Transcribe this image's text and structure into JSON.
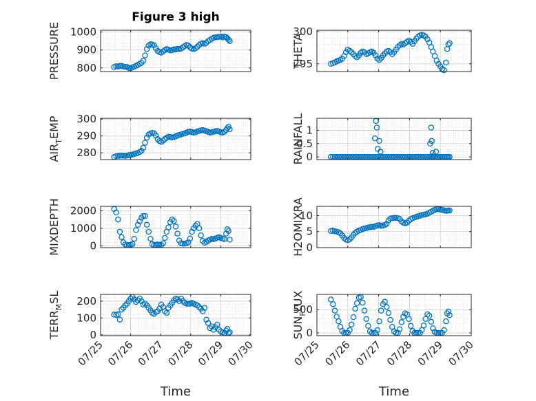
{
  "figure": {
    "title": "Figure 3 high",
    "marker_color": "#0072bd",
    "grid_color": "#d6d6d6",
    "axis_color": "#262626"
  },
  "chart_data": [
    {
      "type": "scatter",
      "ylabel": "PRESSURE",
      "title": "Figure 3 high",
      "xlim": [
        "07/25",
        "07/30"
      ],
      "xticks": [
        "07/25",
        "07/26",
        "07/27",
        "07/28",
        "07/29",
        "07/30"
      ],
      "ylim": [
        780,
        1010
      ],
      "yticks": [
        800,
        900,
        1000
      ],
      "xticklabels_shown": false,
      "grid": true,
      "x": [
        25.45,
        25.52,
        25.58,
        25.64,
        25.7,
        25.76,
        25.82,
        25.88,
        25.94,
        26.0,
        26.06,
        26.12,
        26.18,
        26.24,
        26.3,
        26.36,
        26.42,
        26.48,
        26.54,
        26.6,
        26.66,
        26.72,
        26.78,
        26.84,
        26.9,
        26.96,
        27.02,
        27.08,
        27.14,
        27.2,
        27.26,
        27.32,
        27.38,
        27.44,
        27.5,
        27.56,
        27.62,
        27.68,
        27.74,
        27.8,
        27.86,
        27.92,
        27.98,
        28.04,
        28.1,
        28.16,
        28.22,
        28.28,
        28.34,
        28.4,
        28.46,
        28.52,
        28.58,
        28.64,
        28.7,
        28.76,
        28.82,
        28.88,
        28.94,
        29.0,
        29.06,
        29.12,
        29.18,
        29.22,
        29.26,
        29.3
      ],
      "y": [
        805,
        810,
        808,
        812,
        811,
        808,
        806,
        805,
        800,
        798,
        803,
        807,
        812,
        818,
        823,
        828,
        840,
        870,
        905,
        925,
        932,
        930,
        926,
        910,
        895,
        888,
        885,
        892,
        900,
        905,
        902,
        898,
        900,
        903,
        904,
        906,
        905,
        908,
        915,
        922,
        928,
        925,
        915,
        908,
        905,
        910,
        918,
        928,
        935,
        938,
        935,
        940,
        950,
        955,
        962,
        968,
        970,
        972,
        973,
        975,
        970,
        975,
        972,
        965,
        958,
        950
      ]
    },
    {
      "type": "scatter",
      "ylabel": "THETA",
      "xlim": [
        "07/25",
        "07/30"
      ],
      "xticks": [
        "07/25",
        "07/26",
        "07/27",
        "07/28",
        "07/29",
        "07/30"
      ],
      "ylim": [
        293.8,
        300.2
      ],
      "yticks": [
        295,
        300
      ],
      "xticklabels_shown": false,
      "grid": true,
      "x": [
        25.45,
        25.52,
        25.58,
        25.64,
        25.7,
        25.76,
        25.82,
        25.88,
        25.94,
        26.0,
        26.06,
        26.12,
        26.18,
        26.24,
        26.3,
        26.36,
        26.42,
        26.48,
        26.54,
        26.6,
        26.66,
        26.72,
        26.78,
        26.84,
        26.9,
        26.96,
        27.02,
        27.08,
        27.14,
        27.2,
        27.26,
        27.32,
        27.38,
        27.44,
        27.5,
        27.56,
        27.62,
        27.68,
        27.74,
        27.8,
        27.86,
        27.92,
        27.98,
        28.04,
        28.1,
        28.16,
        28.22,
        28.28,
        28.34,
        28.4,
        28.46,
        28.52,
        28.58,
        28.64,
        28.7,
        28.76,
        28.82,
        28.88,
        28.94,
        29.0,
        29.06,
        29.12,
        29.18,
        29.22,
        29.26,
        29.3
      ],
      "y": [
        295.0,
        295.1,
        295.2,
        295.4,
        295.5,
        295.6,
        295.8,
        296.2,
        296.8,
        297.2,
        297.0,
        296.8,
        296.5,
        296.2,
        296.0,
        296.3,
        296.7,
        296.9,
        296.8,
        296.5,
        296.6,
        296.8,
        296.9,
        296.7,
        296.3,
        295.8,
        295.6,
        295.9,
        296.3,
        296.6,
        296.9,
        297.0,
        296.8,
        296.5,
        296.8,
        297.2,
        297.6,
        297.9,
        298.1,
        298.0,
        298.2,
        298.4,
        298.6,
        298.4,
        298.1,
        298.5,
        298.9,
        299.2,
        299.4,
        299.5,
        299.4,
        299.2,
        298.8,
        298.3,
        297.6,
        296.9,
        296.2,
        295.5,
        295.0,
        294.6,
        294.2,
        294.0,
        295.2,
        297.3,
        298.0,
        298.2
      ]
    },
    {
      "type": "scatter",
      "ylabel": "AIR_TEMP",
      "xlim": [
        "07/25",
        "07/30"
      ],
      "xticks": [
        "07/25",
        "07/26",
        "07/27",
        "07/28",
        "07/29",
        "07/30"
      ],
      "ylim": [
        276,
        300.5
      ],
      "yticks": [
        280,
        290,
        300
      ],
      "xticklabels_shown": false,
      "grid": true,
      "x": [
        25.45,
        25.52,
        25.58,
        25.64,
        25.7,
        25.76,
        25.82,
        25.88,
        25.94,
        26.0,
        26.06,
        26.12,
        26.18,
        26.24,
        26.3,
        26.36,
        26.42,
        26.48,
        26.54,
        26.6,
        26.66,
        26.72,
        26.78,
        26.84,
        26.9,
        26.96,
        27.02,
        27.08,
        27.14,
        27.2,
        27.26,
        27.32,
        27.38,
        27.44,
        27.5,
        27.56,
        27.62,
        27.68,
        27.74,
        27.8,
        27.86,
        27.92,
        27.98,
        28.04,
        28.1,
        28.16,
        28.22,
        28.28,
        28.34,
        28.4,
        28.46,
        28.52,
        28.58,
        28.64,
        28.7,
        28.76,
        28.82,
        28.88,
        28.94,
        29.0,
        29.06,
        29.12,
        29.18,
        29.22,
        29.26,
        29.3
      ],
      "y": [
        277.5,
        278.0,
        278.2,
        278.3,
        278.4,
        278.3,
        278.2,
        278.4,
        278.6,
        278.8,
        279.0,
        279.3,
        279.6,
        280.0,
        280.5,
        281.2,
        283.0,
        286.0,
        289.0,
        290.8,
        291.5,
        291.8,
        291.6,
        290.2,
        288.2,
        287.0,
        286.5,
        287.2,
        288.2,
        289.0,
        289.5,
        289.4,
        289.2,
        289.3,
        289.8,
        290.3,
        290.6,
        290.9,
        291.3,
        291.5,
        292.0,
        292.5,
        292.6,
        292.3,
        292.0,
        292.2,
        292.6,
        293.0,
        293.3,
        293.5,
        293.2,
        292.8,
        292.4,
        292.0,
        292.2,
        292.5,
        292.8,
        293.0,
        292.7,
        292.2,
        292.0,
        292.5,
        293.5,
        294.6,
        295.5,
        294.0
      ]
    },
    {
      "type": "scatter",
      "ylabel": "RAINFALL",
      "xlim": [
        "07/25",
        "07/30"
      ],
      "xticks": [
        "07/25",
        "07/26",
        "07/27",
        "07/28",
        "07/29",
        "07/30"
      ],
      "ylim": [
        -0.1,
        1.45
      ],
      "yticks": [
        0,
        0.5,
        1
      ],
      "xticklabels_shown": false,
      "grid": true,
      "x": [
        25.45,
        25.52,
        25.58,
        25.64,
        25.7,
        25.76,
        25.82,
        25.88,
        25.94,
        26.0,
        26.06,
        26.12,
        26.18,
        26.24,
        26.3,
        26.36,
        26.42,
        26.48,
        26.54,
        26.6,
        26.66,
        26.72,
        26.78,
        26.84,
        26.9,
        26.96,
        27.02,
        27.08,
        27.14,
        27.2,
        27.26,
        27.32,
        27.38,
        27.44,
        27.5,
        27.56,
        27.62,
        27.68,
        27.74,
        27.8,
        27.86,
        27.92,
        27.98,
        28.04,
        28.1,
        28.16,
        28.22,
        28.28,
        28.34,
        28.4,
        28.46,
        28.52,
        28.58,
        28.64,
        28.7,
        28.76,
        28.82,
        28.88,
        28.94,
        29.0,
        29.06,
        29.12,
        29.18,
        29.22,
        29.26,
        29.3,
        26.88,
        26.91,
        26.94,
        26.97,
        27.02,
        27.06,
        28.67,
        28.7,
        28.72,
        28.75,
        28.78,
        28.86
      ],
      "y": [
        0,
        0,
        0,
        0,
        0,
        0,
        0,
        0,
        0,
        0,
        0,
        0,
        0,
        0,
        0,
        0,
        0,
        0,
        0,
        0,
        0,
        0,
        0,
        0,
        0,
        0,
        0,
        0,
        0,
        0,
        0,
        0,
        0,
        0,
        0,
        0,
        0,
        0,
        0,
        0,
        0,
        0,
        0,
        0,
        0,
        0,
        0,
        0,
        0,
        0,
        0,
        0,
        0,
        0,
        0,
        0,
        0,
        0,
        0,
        0,
        0,
        0,
        0,
        0,
        0,
        0,
        0.7,
        1.35,
        1.1,
        0.3,
        0.6,
        0.2,
        0.5,
        1.1,
        0.6,
        0.15,
        0.05,
        0.2
      ]
    },
    {
      "type": "scatter",
      "ylabel": "MIXDEPTH",
      "xlim": [
        "07/25",
        "07/30"
      ],
      "xticks": [
        "07/25",
        "07/26",
        "07/27",
        "07/28",
        "07/29",
        "07/30"
      ],
      "ylim": [
        -100,
        2250
      ],
      "yticks": [
        0,
        1000,
        2000
      ],
      "xticklabels_shown": false,
      "grid": true,
      "x": [
        25.45,
        25.52,
        25.58,
        25.64,
        25.7,
        25.76,
        25.82,
        25.88,
        25.94,
        26.0,
        26.06,
        26.12,
        26.18,
        26.24,
        26.3,
        26.36,
        26.42,
        26.48,
        26.54,
        26.6,
        26.66,
        26.72,
        26.78,
        26.84,
        26.9,
        26.96,
        27.02,
        27.08,
        27.14,
        27.2,
        27.26,
        27.32,
        27.38,
        27.44,
        27.5,
        27.56,
        27.62,
        27.68,
        27.74,
        27.8,
        27.86,
        27.92,
        27.98,
        28.04,
        28.1,
        28.16,
        28.22,
        28.28,
        28.34,
        28.4,
        28.46,
        28.52,
        28.58,
        28.64,
        28.7,
        28.76,
        28.82,
        28.88,
        28.94,
        29.0,
        29.06,
        29.12,
        29.18,
        29.22,
        29.26,
        29.3
      ],
      "y": [
        2100,
        1900,
        1500,
        800,
        500,
        200,
        80,
        40,
        50,
        60,
        100,
        400,
        900,
        1200,
        1400,
        1600,
        1700,
        1700,
        1200,
        800,
        400,
        100,
        50,
        60,
        80,
        60,
        50,
        150,
        450,
        800,
        1050,
        1350,
        1500,
        1420,
        1100,
        700,
        300,
        150,
        120,
        130,
        150,
        200,
        420,
        800,
        1000,
        1150,
        1250,
        1000,
        600,
        280,
        180,
        220,
        300,
        350,
        400,
        380,
        420,
        460,
        500,
        450,
        420,
        380,
        700,
        950,
        850,
        350
      ]
    },
    {
      "type": "scatter",
      "ylabel": "H2OMIXRA",
      "xlim": [
        "07/25",
        "07/30"
      ],
      "xticks": [
        "07/25",
        "07/26",
        "07/27",
        "07/28",
        "07/29",
        "07/30"
      ],
      "ylim": [
        0,
        12.9
      ],
      "yticks": [
        0,
        5,
        10
      ],
      "xticklabels_shown": false,
      "grid": true,
      "x": [
        25.45,
        25.52,
        25.58,
        25.64,
        25.7,
        25.76,
        25.82,
        25.88,
        25.94,
        26.0,
        26.06,
        26.12,
        26.18,
        26.24,
        26.3,
        26.36,
        26.42,
        26.48,
        26.54,
        26.6,
        26.66,
        26.72,
        26.78,
        26.84,
        26.9,
        26.96,
        27.02,
        27.08,
        27.14,
        27.2,
        27.26,
        27.32,
        27.38,
        27.44,
        27.5,
        27.56,
        27.62,
        27.68,
        27.74,
        27.8,
        27.86,
        27.92,
        27.98,
        28.04,
        28.1,
        28.16,
        28.22,
        28.28,
        28.34,
        28.4,
        28.46,
        28.52,
        28.58,
        28.64,
        28.7,
        28.76,
        28.82,
        28.88,
        28.94,
        29.0,
        29.06,
        29.12,
        29.18,
        29.22,
        29.26,
        29.3
      ],
      "y": [
        5.2,
        5.3,
        5.1,
        5.0,
        4.8,
        4.5,
        3.8,
        3.0,
        2.5,
        2.3,
        2.6,
        3.2,
        4.0,
        4.6,
        5.0,
        5.3,
        5.5,
        5.8,
        6.0,
        6.1,
        6.3,
        6.4,
        6.5,
        6.5,
        6.7,
        6.9,
        7.0,
        6.8,
        6.9,
        7.1,
        7.4,
        8.5,
        9.1,
        9.2,
        9.3,
        9.3,
        9.2,
        9.0,
        8.2,
        7.8,
        7.6,
        7.8,
        8.4,
        8.9,
        9.2,
        9.4,
        9.6,
        9.8,
        10.0,
        10.2,
        10.3,
        10.4,
        10.6,
        10.9,
        11.2,
        11.5,
        11.8,
        12.0,
        12.1,
        11.9,
        11.8,
        11.6,
        11.5,
        11.5,
        11.6,
        11.6
      ]
    },
    {
      "type": "scatter",
      "ylabel": "TERR_MSL",
      "xlim": [
        "07/25",
        "07/30"
      ],
      "xticks": [
        "07/25",
        "07/26",
        "07/27",
        "07/28",
        "07/29",
        "07/30"
      ],
      "ylim": [
        -5,
        240
      ],
      "yticks": [
        0,
        100,
        200
      ],
      "xticklabels_shown": true,
      "xlabel": "Time",
      "grid": true,
      "x": [
        25.45,
        25.52,
        25.58,
        25.64,
        25.7,
        25.76,
        25.82,
        25.88,
        25.94,
        26.0,
        26.06,
        26.12,
        26.18,
        26.24,
        26.3,
        26.36,
        26.42,
        26.48,
        26.54,
        26.6,
        26.66,
        26.72,
        26.78,
        26.84,
        26.9,
        26.96,
        27.02,
        27.08,
        27.14,
        27.2,
        27.26,
        27.32,
        27.38,
        27.44,
        27.5,
        27.56,
        27.62,
        27.68,
        27.74,
        27.8,
        27.86,
        27.92,
        27.98,
        28.04,
        28.1,
        28.16,
        28.22,
        28.28,
        28.34,
        28.4,
        28.46,
        28.52,
        28.58,
        28.64,
        28.7,
        28.76,
        28.82,
        28.88,
        28.94,
        29.0,
        29.06,
        29.12,
        29.18,
        29.22,
        29.26,
        29.3
      ],
      "y": [
        120,
        118,
        122,
        90,
        150,
        160,
        175,
        185,
        200,
        215,
        225,
        210,
        195,
        205,
        215,
        200,
        180,
        185,
        175,
        160,
        145,
        130,
        125,
        135,
        140,
        155,
        180,
        165,
        140,
        130,
        160,
        175,
        190,
        205,
        215,
        210,
        200,
        215,
        200,
        190,
        185,
        185,
        185,
        190,
        185,
        180,
        175,
        165,
        155,
        140,
        160,
        90,
        70,
        40,
        50,
        30,
        45,
        60,
        30,
        20,
        15,
        10,
        25,
        35,
        10,
        15
      ]
    },
    {
      "type": "scatter",
      "ylabel": "SUN_FLUX",
      "xlim": [
        "07/25",
        "07/30"
      ],
      "xticks": [
        "07/25",
        "07/26",
        "07/27",
        "07/28",
        "07/29",
        "07/30"
      ],
      "ylim": [
        -60,
        830
      ],
      "yticks": [
        0,
        500
      ],
      "xticklabels_shown": true,
      "xlabel": "Time",
      "grid": true,
      "x": [
        25.45,
        25.52,
        25.58,
        25.64,
        25.7,
        25.76,
        25.82,
        25.88,
        25.94,
        26.0,
        26.06,
        26.12,
        26.18,
        26.24,
        26.3,
        26.36,
        26.42,
        26.48,
        26.54,
        26.6,
        26.66,
        26.72,
        26.78,
        26.84,
        26.9,
        26.96,
        27.02,
        27.08,
        27.14,
        27.2,
        27.26,
        27.32,
        27.38,
        27.44,
        27.5,
        27.56,
        27.62,
        27.68,
        27.74,
        27.8,
        27.86,
        27.92,
        27.98,
        28.04,
        28.1,
        28.16,
        28.22,
        28.28,
        28.34,
        28.4,
        28.46,
        28.52,
        28.58,
        28.64,
        28.7,
        28.76,
        28.82,
        28.88,
        28.94,
        29.0,
        29.06,
        29.12,
        29.18,
        29.22,
        29.26,
        29.3
      ],
      "y": [
        720,
        620,
        480,
        350,
        250,
        130,
        40,
        0,
        0,
        0,
        60,
        180,
        340,
        520,
        640,
        760,
        770,
        650,
        480,
        300,
        150,
        30,
        0,
        0,
        0,
        60,
        250,
        480,
        620,
        670,
        560,
        430,
        280,
        130,
        30,
        0,
        0,
        80,
        230,
        350,
        420,
        400,
        300,
        150,
        40,
        0,
        0,
        0,
        0,
        60,
        160,
        300,
        400,
        370,
        240,
        100,
        20,
        0,
        0,
        0,
        0,
        60,
        250,
        420,
        460,
        380
      ]
    }
  ]
}
